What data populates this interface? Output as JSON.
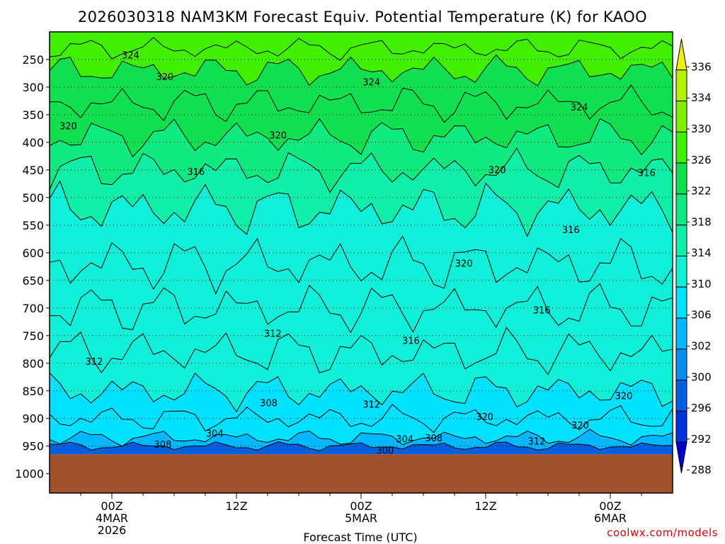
{
  "chart_data": {
    "type": "heatmap",
    "title": "2026030318 NAM3KM Forecast Equiv. Potential Temperature (K) for KAOO",
    "xlabel": "Forecast Time (UTC)",
    "ylabel": "",
    "credit": "coolwx.com/models",
    "y_ticks": [
      250,
      300,
      350,
      400,
      450,
      500,
      550,
      600,
      650,
      700,
      750,
      800,
      850,
      900,
      950,
      1000
    ],
    "x_ticks": [
      {
        "hour": 6,
        "line1": "00Z",
        "line2": "4MAR",
        "line3": "2026"
      },
      {
        "hour": 18,
        "line1": "12Z",
        "line2": "",
        "line3": ""
      },
      {
        "hour": 30,
        "line1": "00Z",
        "line2": "5MAR",
        "line3": ""
      },
      {
        "hour": 42,
        "line1": "12Z",
        "line2": "",
        "line3": ""
      },
      {
        "hour": 54,
        "line1": "00Z",
        "line2": "6MAR",
        "line3": ""
      }
    ],
    "x_range_hours": [
      0,
      60
    ],
    "y_range_hpa": [
      200,
      1035
    ],
    "surface_pressure_hpa": 965,
    "colorbar": {
      "labels": [
        "336",
        "334",
        "330",
        "326",
        "322",
        "318",
        "314",
        "310",
        "306",
        "302",
        "300",
        "296",
        "292",
        "288"
      ],
      "colors": [
        "#f0f000",
        "#b4f000",
        "#80f000",
        "#40f000",
        "#10e050",
        "#10e880",
        "#10eea8",
        "#10f0d8",
        "#00e0ff",
        "#00b8ff",
        "#0090f0",
        "#0060e0",
        "#0030d8",
        "#0000d0"
      ]
    },
    "contour_labels": [
      {
        "text": "324",
        "hour": 7.8,
        "hpa": 243
      },
      {
        "text": "320",
        "hour": 11.1,
        "hpa": 282
      },
      {
        "text": "320",
        "hour": 1.8,
        "hpa": 371
      },
      {
        "text": "324",
        "hour": 31.0,
        "hpa": 292
      },
      {
        "text": "324",
        "hour": 51.0,
        "hpa": 337
      },
      {
        "text": "320",
        "hour": 22.0,
        "hpa": 388
      },
      {
        "text": "316",
        "hour": 14.1,
        "hpa": 454
      },
      {
        "text": "320",
        "hour": 43.1,
        "hpa": 451
      },
      {
        "text": "316",
        "hour": 57.5,
        "hpa": 456
      },
      {
        "text": "316",
        "hour": 50.2,
        "hpa": 559
      },
      {
        "text": "320",
        "hour": 39.9,
        "hpa": 620
      },
      {
        "text": "316",
        "hour": 47.4,
        "hpa": 705
      },
      {
        "text": "312",
        "hour": 21.5,
        "hpa": 747
      },
      {
        "text": "316",
        "hour": 34.8,
        "hpa": 760
      },
      {
        "text": "312",
        "hour": 4.3,
        "hpa": 798
      },
      {
        "text": "308",
        "hour": 21.1,
        "hpa": 873
      },
      {
        "text": "312",
        "hour": 31.0,
        "hpa": 875
      },
      {
        "text": "320",
        "hour": 55.3,
        "hpa": 860
      },
      {
        "text": "320",
        "hour": 41.9,
        "hpa": 898
      },
      {
        "text": "320",
        "hour": 51.1,
        "hpa": 913
      },
      {
        "text": "304",
        "hour": 15.9,
        "hpa": 928
      },
      {
        "text": "304",
        "hour": 34.2,
        "hpa": 938
      },
      {
        "text": "308",
        "hour": 37.0,
        "hpa": 936
      },
      {
        "text": "312",
        "hour": 46.9,
        "hpa": 942
      },
      {
        "text": "308",
        "hour": 10.9,
        "hpa": 948
      },
      {
        "text": "300",
        "hour": 32.3,
        "hpa": 959
      }
    ],
    "levels": [
      {
        "hpa": 200,
        "band": 3
      },
      {
        "hpa": 230,
        "band": 3
      },
      {
        "hpa": 270,
        "band": 4
      },
      {
        "hpa": 330,
        "band": 4
      },
      {
        "hpa": 390,
        "band": 5
      },
      {
        "hpa": 450,
        "band": 6
      },
      {
        "hpa": 520,
        "band": 7
      },
      {
        "hpa": 620,
        "band": 7
      },
      {
        "hpa": 700,
        "band": 7
      },
      {
        "hpa": 780,
        "band": 7
      },
      {
        "hpa": 850,
        "band": 8
      },
      {
        "hpa": 900,
        "band": 8
      },
      {
        "hpa": 935,
        "band": 9
      },
      {
        "hpa": 950,
        "band": 11
      },
      {
        "hpa": 965,
        "band": 13
      }
    ]
  }
}
